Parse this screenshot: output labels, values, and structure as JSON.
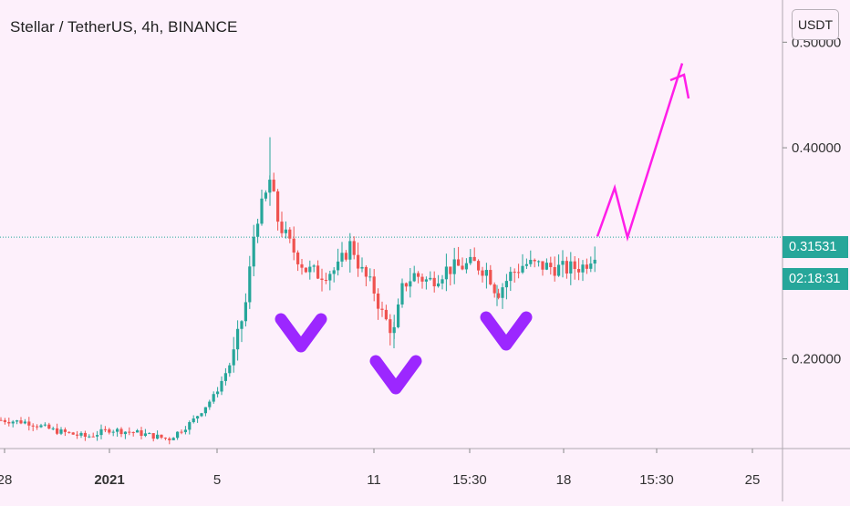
{
  "header": {
    "title": "Stellar / TetherUS, 4h, BINANCE",
    "currency_label": "USDT"
  },
  "price_scale": {
    "current_price": "0.31531",
    "countdown": "02:18:31",
    "price_color": "#26a69a",
    "countdown_color": "#26a69a"
  },
  "colors": {
    "up": "#26a69a",
    "down": "#ef5350",
    "annotation_v": "#9c27ff",
    "projection": "#ff1ee8",
    "background": "#fdf0fb"
  },
  "chart_data": {
    "type": "candlestick",
    "title": "Stellar / TetherUS, 4h, BINANCE",
    "ylim": [
      0.115,
      0.54
    ],
    "y_ticks": [
      "0.50000",
      "0.40000",
      "0.20000"
    ],
    "x_ticks": [
      "28",
      "2021",
      "5",
      "11",
      "15:30",
      "18",
      "15:30",
      "25"
    ],
    "current_price": 0.31531,
    "price_path_points": [
      [
        0,
        0.142
      ],
      [
        30,
        0.14
      ],
      [
        60,
        0.132
      ],
      [
        95,
        0.126
      ],
      [
        120,
        0.133
      ],
      [
        150,
        0.13
      ],
      [
        185,
        0.124
      ],
      [
        210,
        0.14
      ],
      [
        235,
        0.165
      ],
      [
        255,
        0.2
      ],
      [
        270,
        0.255
      ],
      [
        280,
        0.33
      ],
      [
        290,
        0.35
      ],
      [
        296,
        0.37
      ],
      [
        305,
        0.33
      ],
      [
        320,
        0.305
      ],
      [
        335,
        0.285
      ],
      [
        350,
        0.28
      ],
      [
        370,
        0.285
      ],
      [
        385,
        0.31
      ],
      [
        395,
        0.285
      ],
      [
        410,
        0.265
      ],
      [
        420,
        0.24
      ],
      [
        432,
        0.225
      ],
      [
        442,
        0.27
      ],
      [
        455,
        0.28
      ],
      [
        470,
        0.273
      ],
      [
        490,
        0.285
      ],
      [
        520,
        0.29
      ],
      [
        535,
        0.283
      ],
      [
        545,
        0.262
      ],
      [
        560,
        0.28
      ],
      [
        575,
        0.29
      ],
      [
        595,
        0.288
      ],
      [
        620,
        0.285
      ],
      [
        640,
        0.288
      ],
      [
        655,
        0.305
      ]
    ],
    "annotations": {
      "v_marks": 3,
      "projection_path": [
        [
          0.316
        ],
        [
          0.36
        ],
        [
          0.315
        ],
        [
          0.48
        ]
      ]
    }
  }
}
